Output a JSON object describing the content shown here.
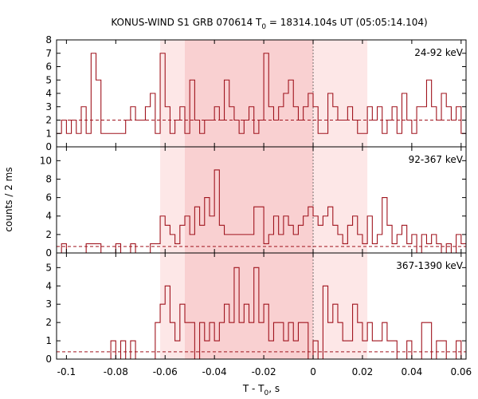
{
  "chart_data": {
    "type": "step",
    "title_main": "KONUS-WIND S1 GRB 070614 T",
    "title_sub": "0",
    "title_rest": " = 18314.104s UT (05:05:14.104)",
    "xlabel_main": "T - T",
    "xlabel_sub": "0",
    "xlabel_rest": ", s",
    "ylabel": "counts / 2 ms",
    "xlim": [
      -0.104,
      0.062
    ],
    "xticks": [
      -0.1,
      -0.08,
      -0.06,
      -0.04,
      -0.02,
      0,
      0.02,
      0.04,
      0.06
    ],
    "xtick_labels": [
      "-0.1",
      "-0.08",
      "-0.06",
      "-0.04",
      "-0.02",
      "0",
      "0.02",
      "0.04",
      "0.06"
    ],
    "bin_width": 0.002,
    "t0_line": 0,
    "colors": {
      "series": "#a0141e",
      "light_interval": "#fde7e7",
      "dark_interval": "#f9d0d1"
    },
    "intervals": {
      "light": [
        -0.062,
        0.022
      ],
      "dark": [
        -0.052,
        0
      ]
    },
    "panels": [
      {
        "name": "24-92 keV",
        "ylim": [
          0,
          8
        ],
        "yticks": [
          0,
          1,
          2,
          3,
          4,
          5,
          6,
          7,
          8
        ],
        "background": 2,
        "x": [
          -0.104,
          -0.102,
          -0.1,
          -0.098,
          -0.096,
          -0.094,
          -0.092,
          -0.09,
          -0.088,
          -0.086,
          -0.084,
          -0.082,
          -0.08,
          -0.078,
          -0.076,
          -0.074,
          -0.072,
          -0.07,
          -0.068,
          -0.066,
          -0.064,
          -0.062,
          -0.06,
          -0.058,
          -0.056,
          -0.054,
          -0.052,
          -0.05,
          -0.048,
          -0.046,
          -0.044,
          -0.042,
          -0.04,
          -0.038,
          -0.036,
          -0.034,
          -0.032,
          -0.03,
          -0.028,
          -0.026,
          -0.024,
          -0.022,
          -0.02,
          -0.018,
          -0.016,
          -0.014,
          -0.012,
          -0.01,
          -0.008,
          -0.006,
          -0.004,
          -0.002,
          0,
          0.002,
          0.004,
          0.006,
          0.008,
          0.01,
          0.012,
          0.014,
          0.016,
          0.018,
          0.02,
          0.022,
          0.024,
          0.026,
          0.028,
          0.03,
          0.032,
          0.034,
          0.036,
          0.038,
          0.04,
          0.042,
          0.044,
          0.046,
          0.048,
          0.05,
          0.052,
          0.054,
          0.056,
          0.058,
          0.06
        ],
        "values": [
          1,
          2,
          1,
          2,
          1,
          3,
          1,
          7,
          5,
          1,
          1,
          1,
          1,
          1,
          2,
          3,
          2,
          2,
          3,
          4,
          1,
          7,
          3,
          1,
          2,
          3,
          1,
          5,
          2,
          1,
          2,
          2,
          3,
          2,
          5,
          3,
          2,
          1,
          2,
          3,
          1,
          2,
          7,
          3,
          2,
          3,
          4,
          5,
          3,
          2,
          3,
          4,
          3,
          1,
          1,
          4,
          3,
          2,
          2,
          3,
          2,
          1,
          1,
          3,
          2,
          3,
          1,
          2,
          3,
          1,
          4,
          2,
          1,
          3,
          3,
          5,
          3,
          2,
          4,
          3,
          2,
          3,
          1
        ]
      },
      {
        "name": "92-367 keV",
        "ylim": [
          0,
          11.5
        ],
        "yticks": [
          0,
          2,
          4,
          6,
          8,
          10
        ],
        "background": 0.7,
        "x": [
          -0.104,
          -0.102,
          -0.1,
          -0.098,
          -0.096,
          -0.094,
          -0.092,
          -0.09,
          -0.088,
          -0.086,
          -0.084,
          -0.082,
          -0.08,
          -0.078,
          -0.076,
          -0.074,
          -0.072,
          -0.07,
          -0.068,
          -0.066,
          -0.064,
          -0.062,
          -0.06,
          -0.058,
          -0.056,
          -0.054,
          -0.052,
          -0.05,
          -0.048,
          -0.046,
          -0.044,
          -0.042,
          -0.04,
          -0.038,
          -0.036,
          -0.034,
          -0.032,
          -0.03,
          -0.028,
          -0.026,
          -0.024,
          -0.022,
          -0.02,
          -0.018,
          -0.016,
          -0.014,
          -0.012,
          -0.01,
          -0.008,
          -0.006,
          -0.004,
          -0.002,
          0,
          0.002,
          0.004,
          0.006,
          0.008,
          0.01,
          0.012,
          0.014,
          0.016,
          0.018,
          0.02,
          0.022,
          0.024,
          0.026,
          0.028,
          0.03,
          0.032,
          0.034,
          0.036,
          0.038,
          0.04,
          0.042,
          0.044,
          0.046,
          0.048,
          0.05,
          0.052,
          0.054,
          0.056,
          0.058,
          0.06
        ],
        "values": [
          0,
          1,
          0,
          0,
          0,
          0,
          1,
          1,
          1,
          0,
          0,
          0,
          1,
          0,
          0,
          1,
          0,
          0,
          0,
          1,
          1,
          4,
          3,
          2,
          1,
          3,
          4,
          2,
          5,
          3,
          6,
          4,
          9,
          3,
          2,
          2,
          2,
          2,
          2,
          2,
          5,
          5,
          1,
          2,
          4,
          2,
          4,
          3,
          2,
          3,
          4,
          5,
          4,
          3,
          4,
          5,
          3,
          2,
          1,
          3,
          4,
          2,
          1,
          4,
          1,
          2,
          6,
          3,
          1,
          2,
          3,
          1,
          2,
          0,
          2,
          1,
          2,
          1,
          0,
          1,
          0,
          2,
          1
        ]
      },
      {
        "name": "367-1390 keV",
        "ylim": [
          0,
          5.8
        ],
        "yticks": [
          0,
          1,
          2,
          3,
          4,
          5
        ],
        "background": 0.4,
        "x": [
          -0.104,
          -0.102,
          -0.1,
          -0.098,
          -0.096,
          -0.094,
          -0.092,
          -0.09,
          -0.088,
          -0.086,
          -0.084,
          -0.082,
          -0.08,
          -0.078,
          -0.076,
          -0.074,
          -0.072,
          -0.07,
          -0.068,
          -0.066,
          -0.064,
          -0.062,
          -0.06,
          -0.058,
          -0.056,
          -0.054,
          -0.052,
          -0.05,
          -0.048,
          -0.046,
          -0.044,
          -0.042,
          -0.04,
          -0.038,
          -0.036,
          -0.034,
          -0.032,
          -0.03,
          -0.028,
          -0.026,
          -0.024,
          -0.022,
          -0.02,
          -0.018,
          -0.016,
          -0.014,
          -0.012,
          -0.01,
          -0.008,
          -0.006,
          -0.004,
          -0.002,
          0,
          0.002,
          0.004,
          0.006,
          0.008,
          0.01,
          0.012,
          0.014,
          0.016,
          0.018,
          0.02,
          0.022,
          0.024,
          0.026,
          0.028,
          0.03,
          0.032,
          0.034,
          0.036,
          0.038,
          0.04,
          0.042,
          0.044,
          0.046,
          0.048,
          0.05,
          0.052,
          0.054,
          0.056,
          0.058,
          0.06
        ],
        "values": [
          0,
          0,
          0,
          0,
          0,
          0,
          0,
          0,
          0,
          0,
          0,
          1,
          0,
          1,
          0,
          1,
          0,
          0,
          0,
          0,
          2,
          3,
          4,
          2,
          1,
          3,
          2,
          2,
          0,
          2,
          1,
          2,
          1,
          2,
          3,
          2,
          5,
          2,
          3,
          2,
          5,
          2,
          3,
          1,
          2,
          2,
          1,
          2,
          1,
          2,
          2,
          0,
          1,
          0,
          4,
          2,
          3,
          2,
          1,
          1,
          3,
          2,
          1,
          2,
          1,
          1,
          2,
          1,
          1,
          0,
          0,
          1,
          0,
          0,
          2,
          2,
          0,
          1,
          1,
          0,
          0,
          1,
          0
        ]
      }
    ]
  }
}
